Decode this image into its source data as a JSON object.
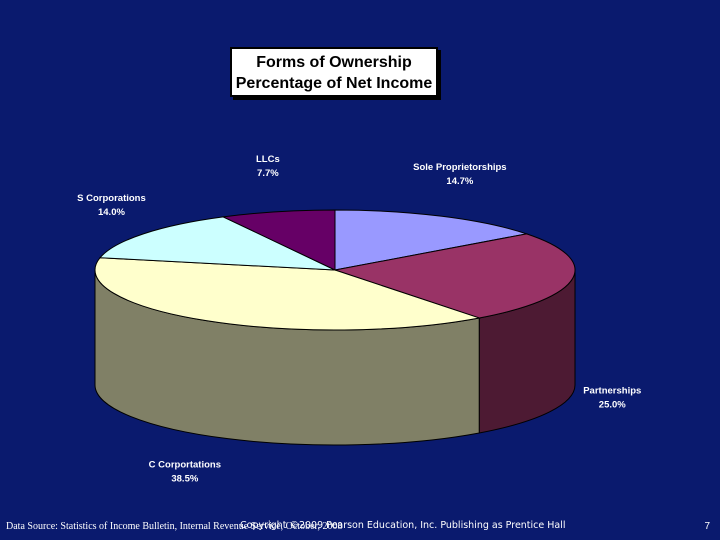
{
  "title": {
    "line1": "Forms of Ownership",
    "line2": "Percentage of Net Income"
  },
  "chart_data": {
    "type": "pie",
    "title": "Forms of Ownership Percentage of Net Income",
    "three_d": true,
    "slices": [
      {
        "label": "Sole Proprietorships",
        "value": 14.7,
        "value_label": "14.7%",
        "color": "#9999ff"
      },
      {
        "label": "Partnerships",
        "value": 25.0,
        "value_label": "25.0%",
        "color": "#993366"
      },
      {
        "label": "C Corportations",
        "value": 38.5,
        "value_label": "38.5%",
        "color": "#ffffcc"
      },
      {
        "label": "S Corporations",
        "value": 14.0,
        "value_label": "14.0%",
        "color": "#ccffff"
      },
      {
        "label": "LLCs",
        "value": 7.7,
        "value_label": "7.7%",
        "color": "#660066"
      }
    ]
  },
  "footer": {
    "source": "Data Source: Statistics of Income Bulletin, Internal Revenue Service, October, 2008",
    "copyright": "Copyright ©2009 Pearson Education, Inc. Publishing as Prentice Hall",
    "page_number": "7"
  }
}
